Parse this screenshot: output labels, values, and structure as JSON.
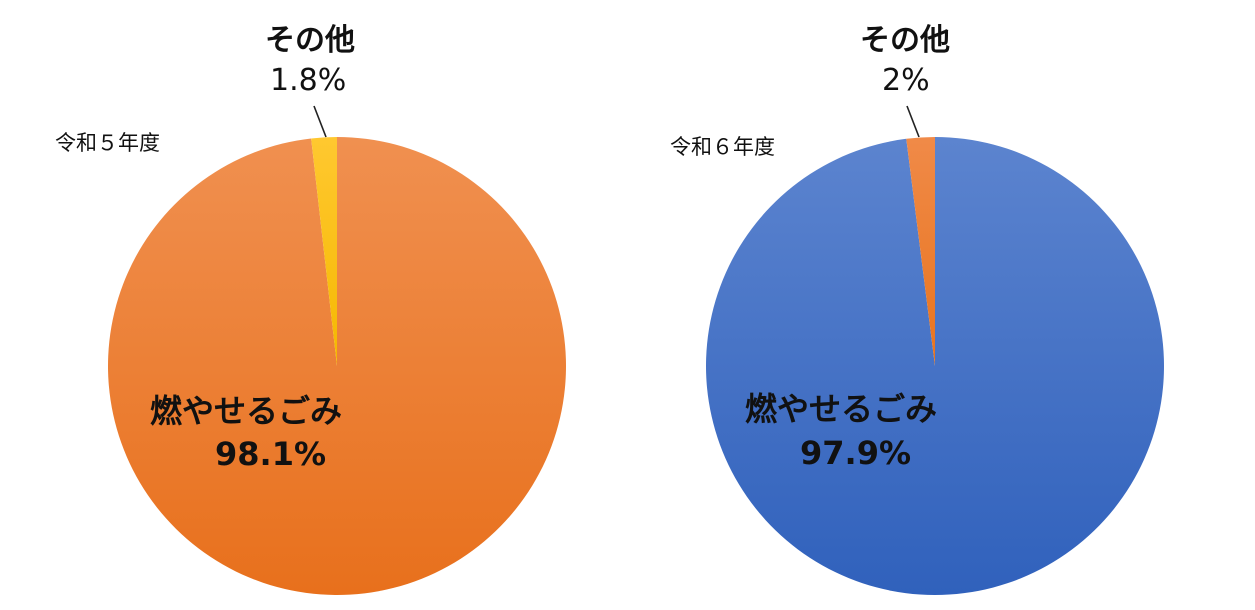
{
  "chart_data": [
    {
      "type": "pie",
      "title": "令和５年度",
      "slices": [
        {
          "label": "燃やせるごみ",
          "value": 98.1,
          "value_label": "98.1%",
          "color": "#ED7D31"
        },
        {
          "label": "その他",
          "value": 1.8,
          "value_label": "1.8%",
          "color": "#FFC000"
        }
      ]
    },
    {
      "type": "pie",
      "title": "令和６年度",
      "slices": [
        {
          "label": "燃やせるごみ",
          "value": 97.9,
          "value_label": "97.9%",
          "color": "#4472C4"
        },
        {
          "label": "その他",
          "value": 2,
          "value_label": "2%",
          "color": "#ED7D31"
        }
      ]
    }
  ]
}
